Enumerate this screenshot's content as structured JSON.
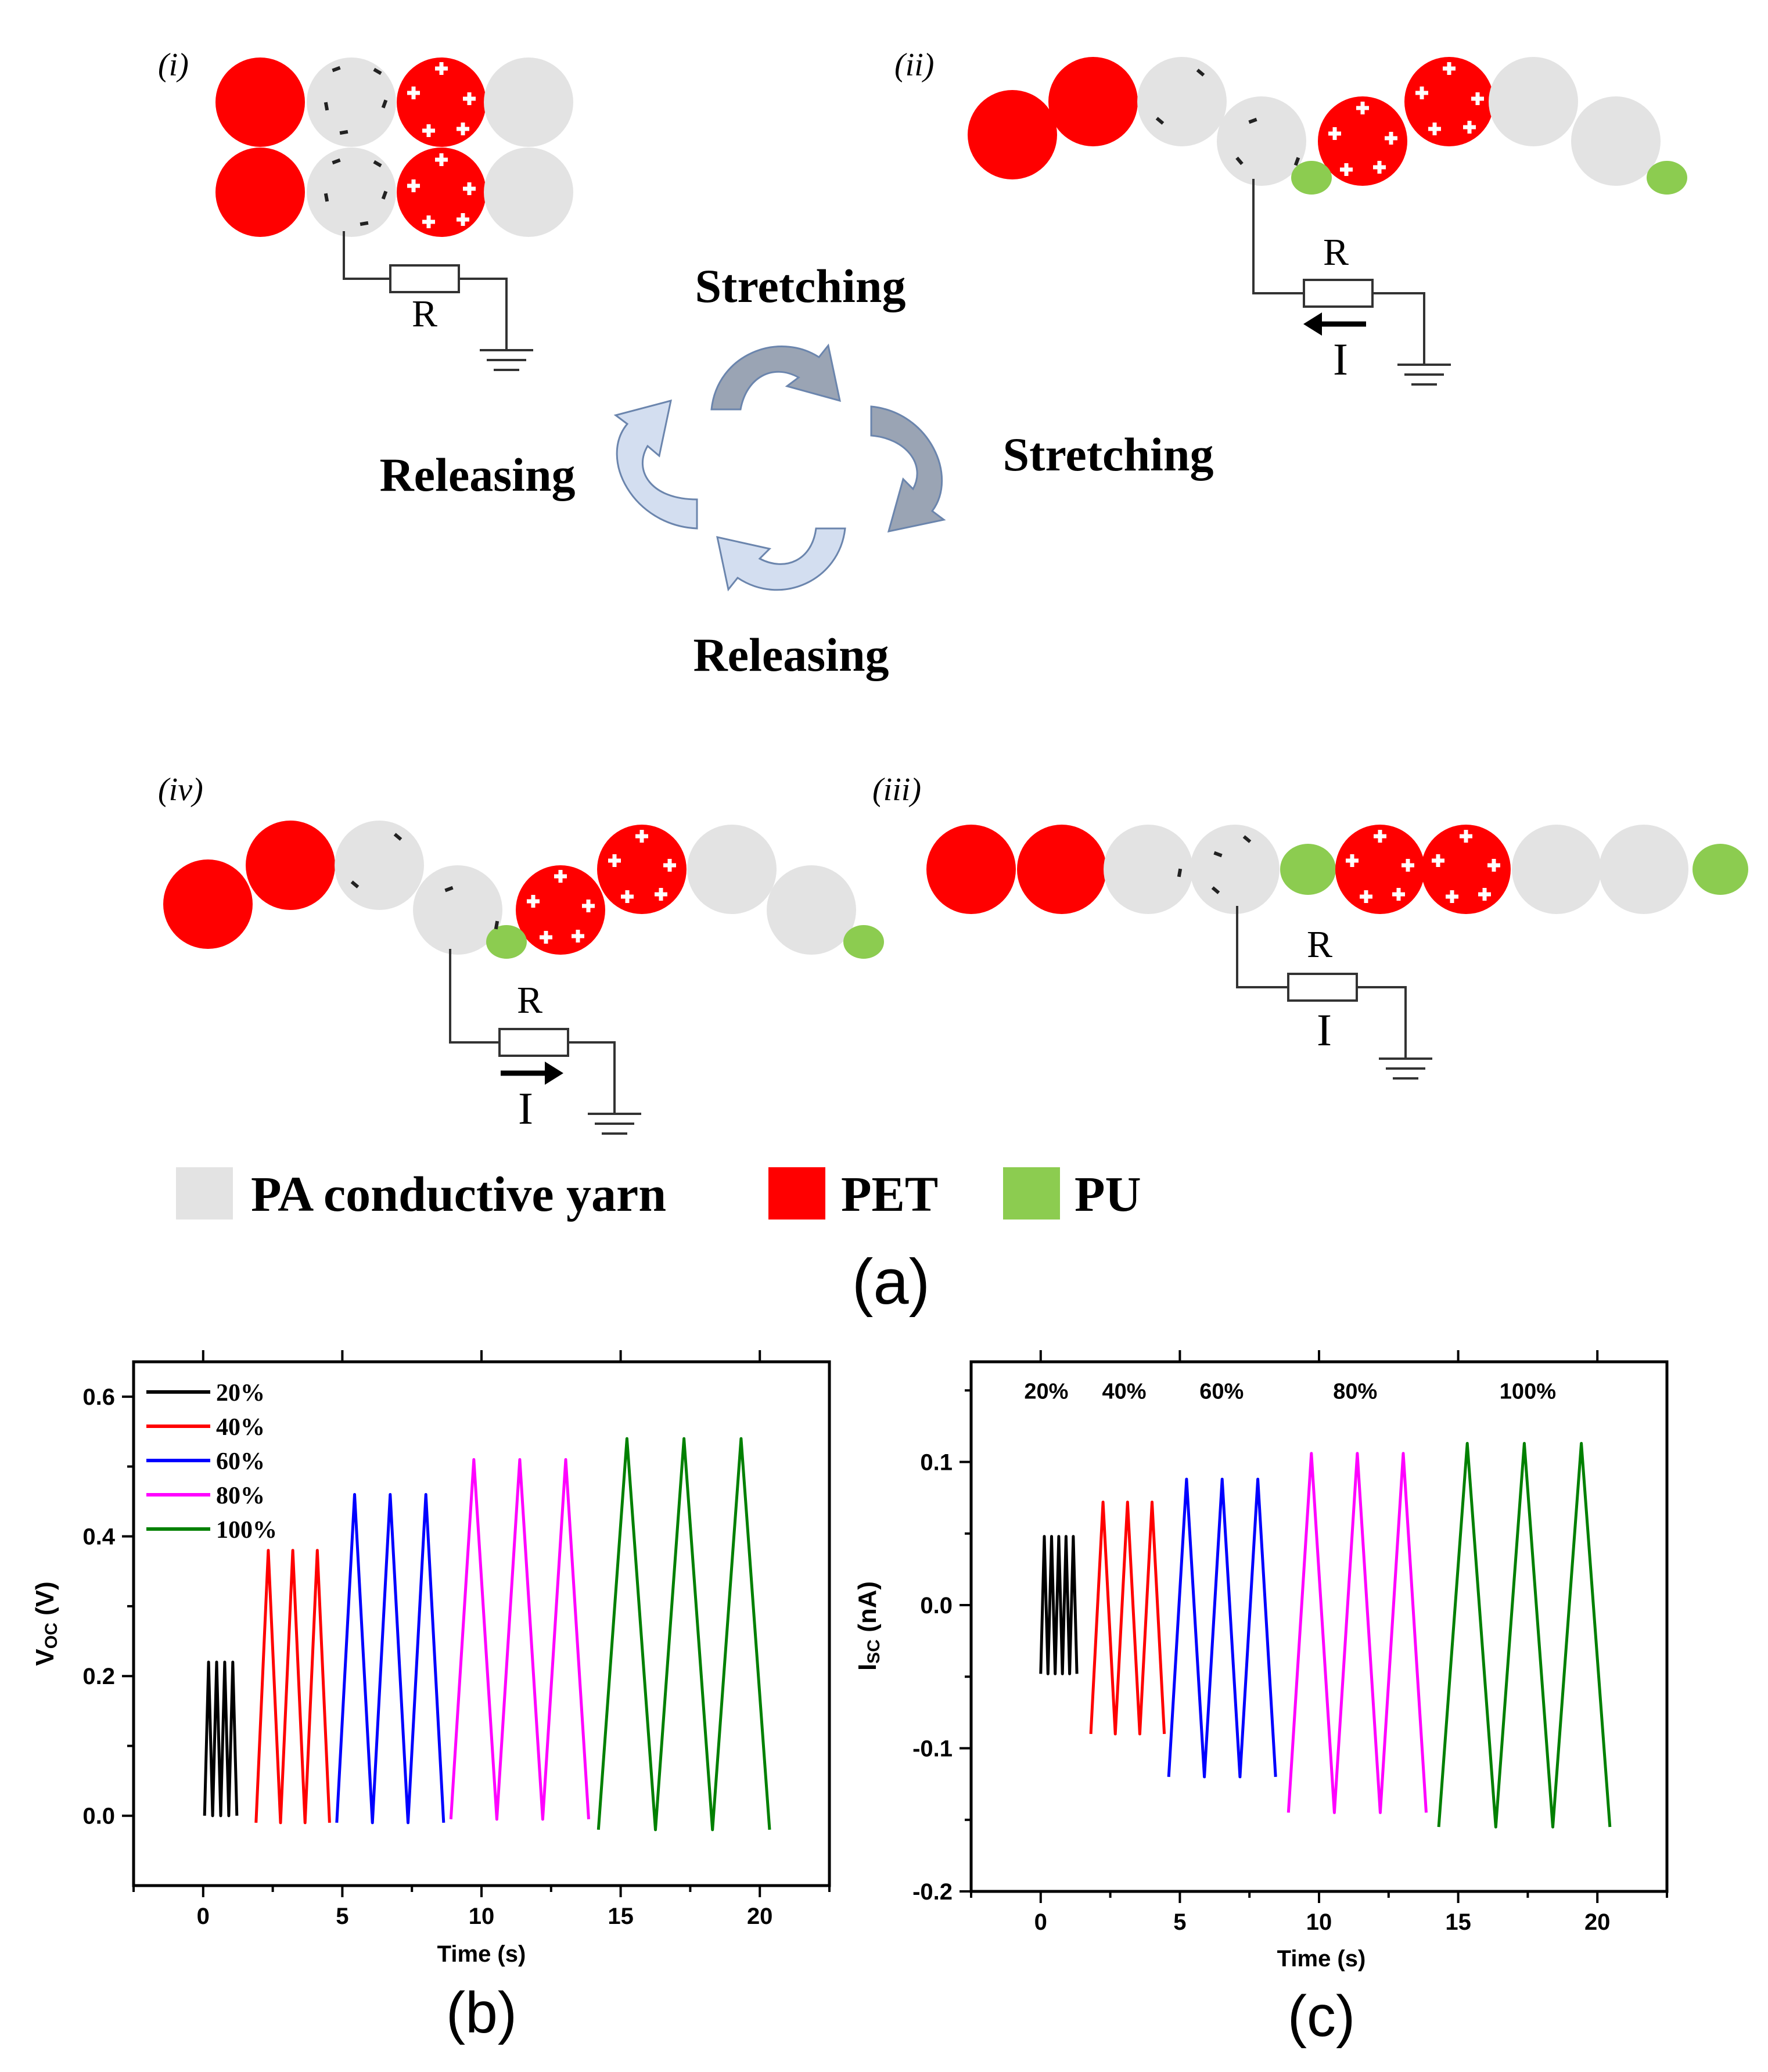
{
  "colors": {
    "pa_yarn": "#e3e3e3",
    "pet": "#ff0000",
    "pu": "#8ccc50",
    "arrow_dark": "#9aa4b4",
    "arrow_light": "#d3def0",
    "arrow_stroke": "#6b85ad",
    "series": [
      "#000000",
      "#ff0000",
      "#0000ff",
      "#ff00ff",
      "#008000"
    ]
  },
  "panel_a": {
    "stage_labels": [
      "(i)",
      "(ii)",
      "(iii)",
      "(iv)"
    ],
    "resistor_label": "R",
    "current_label": "I",
    "cycle": {
      "top": "Stretching",
      "right": "Stretching",
      "bottom": "Releasing",
      "left": "Releasing"
    },
    "legend": [
      {
        "label": "PA conductive yarn",
        "color": "#e3e3e3"
      },
      {
        "label": "PET",
        "color": "#ff0000"
      },
      {
        "label": "PU",
        "color": "#8ccc50"
      }
    ],
    "caption": "(a)"
  },
  "panel_b": {
    "caption": "(b)",
    "chart_data": {
      "type": "line",
      "ylabel_main": "V",
      "ylabel_sub": "OC",
      "ylabel_unit": " (V)",
      "xlabel": "Time (s)",
      "xlim": [
        -2.5,
        22.5
      ],
      "ylim": [
        -0.1,
        0.65
      ],
      "xticks": [
        0,
        5,
        10,
        15,
        20
      ],
      "xtick_labels": [
        "0",
        "5",
        "10",
        "15",
        "20"
      ],
      "yticks": [
        0.0,
        0.2,
        0.4,
        0.6
      ],
      "ytick_labels": [
        "0.0",
        "0.2",
        "0.4",
        "0.6"
      ],
      "legend_position": "top-left",
      "series": [
        {
          "name": "20%",
          "start": 0.05,
          "period": 0.29,
          "cycles": 4,
          "min": 0.0,
          "max": 0.22
        },
        {
          "name": "40%",
          "start": 1.9,
          "period": 0.88,
          "cycles": 3,
          "min": -0.01,
          "max": 0.38
        },
        {
          "name": "60%",
          "start": 4.8,
          "period": 1.28,
          "cycles": 3,
          "min": -0.01,
          "max": 0.46
        },
        {
          "name": "80%",
          "start": 8.9,
          "period": 1.65,
          "cycles": 3,
          "min": -0.005,
          "max": 0.51
        },
        {
          "name": "100%",
          "start": 14.2,
          "period": 2.05,
          "cycles": 3,
          "min": -0.02,
          "max": 0.54
        }
      ]
    }
  },
  "panel_c": {
    "caption": "(c)",
    "chart_data": {
      "type": "line",
      "ylabel_main": "I",
      "ylabel_sub": "SC",
      "ylabel_unit": " (nA)",
      "xlabel": "Time (s)",
      "xlim": [
        -2.5,
        22.5
      ],
      "ylim": [
        -0.2,
        0.17
      ],
      "xticks": [
        0,
        5,
        10,
        15,
        20
      ],
      "xtick_labels": [
        "0",
        "5",
        "10",
        "15",
        "20"
      ],
      "yticks": [
        -0.2,
        -0.1,
        0.0,
        0.1
      ],
      "ytick_labels": [
        "-0.2",
        "-0.1",
        "0.0",
        "0.1"
      ],
      "annotations": [
        {
          "text": "20%",
          "x": 0.2
        },
        {
          "text": "40%",
          "x": 3.0
        },
        {
          "text": "60%",
          "x": 6.5
        },
        {
          "text": "80%",
          "x": 11.3
        },
        {
          "text": "100%",
          "x": 17.5
        }
      ],
      "annotation_y": 0.15,
      "series": [
        {
          "name": "20%",
          "start": 0.0,
          "period": 0.26,
          "cycles": 5,
          "min": -0.048,
          "max": 0.048
        },
        {
          "name": "40%",
          "start": 1.8,
          "period": 0.88,
          "cycles": 3,
          "min": -0.09,
          "max": 0.072
        },
        {
          "name": "60%",
          "start": 4.6,
          "period": 1.28,
          "cycles": 3,
          "min": -0.12,
          "max": 0.088
        },
        {
          "name": "80%",
          "start": 8.9,
          "period": 1.65,
          "cycles": 3,
          "min": -0.145,
          "max": 0.106
        },
        {
          "name": "100%",
          "start": 14.3,
          "period": 2.05,
          "cycles": 3,
          "min": -0.155,
          "max": 0.113
        }
      ]
    }
  }
}
